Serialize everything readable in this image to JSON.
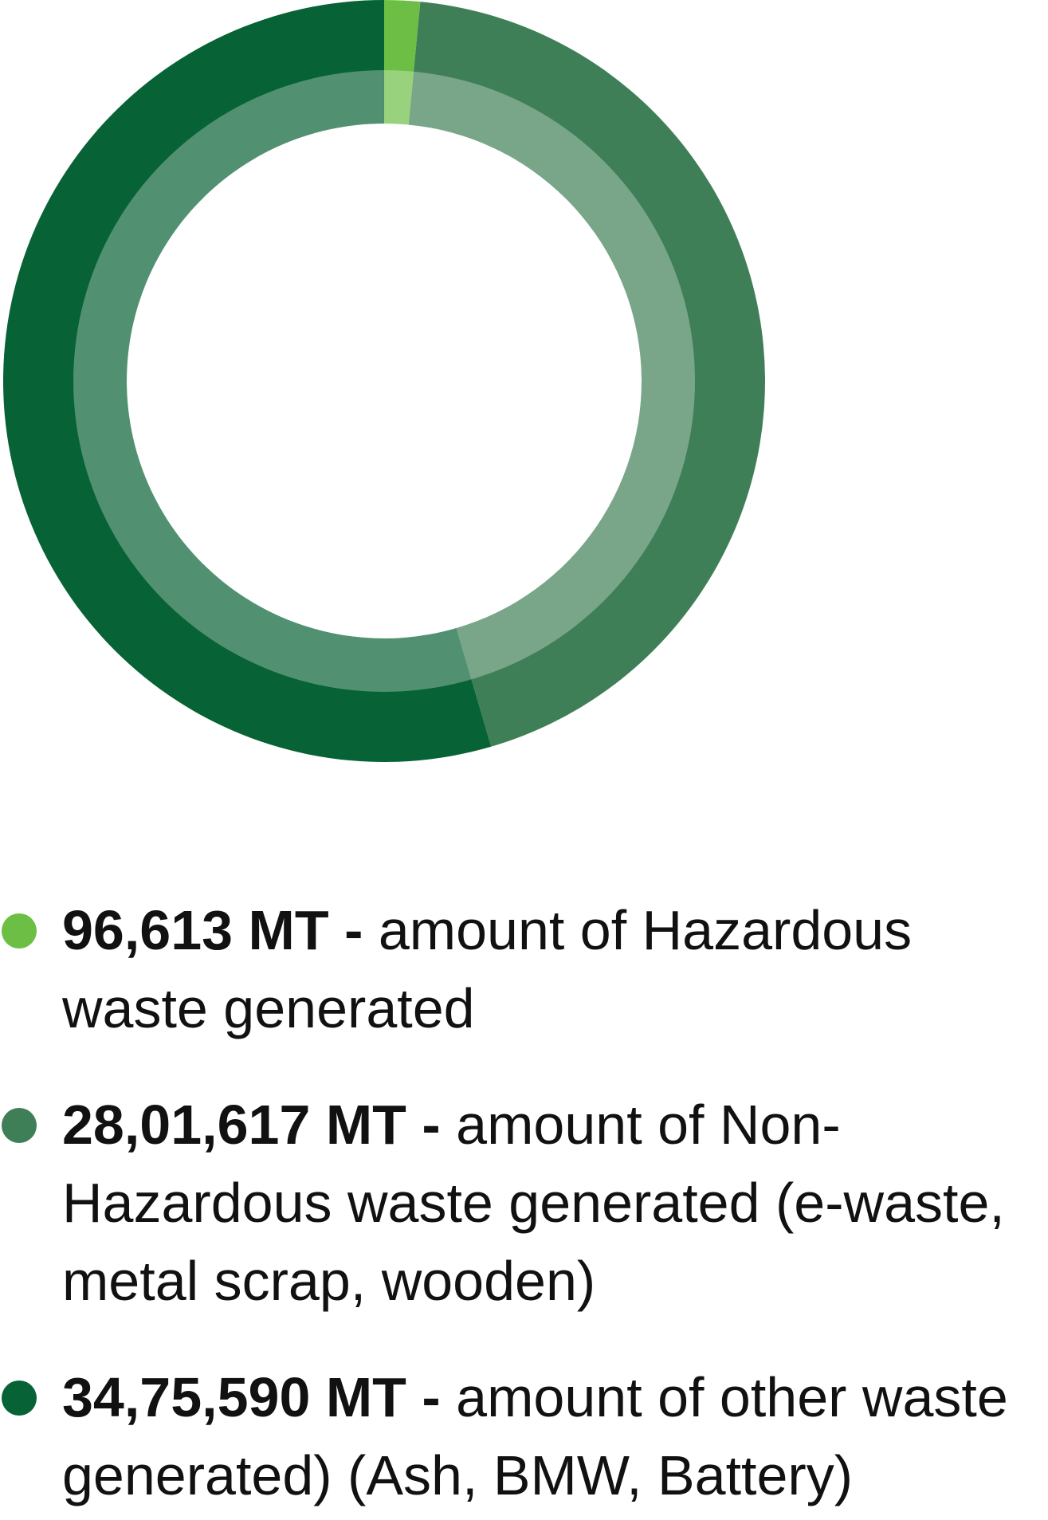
{
  "chart_data": {
    "type": "pie",
    "categories": [
      "amount of Hazardous waste generated",
      "amount of Non-Hazardous waste generated (e-waste, metal scrap, wooden)",
      "amount of other waste generated) (Ash, BMW, Battery)"
    ],
    "values": [
      96613,
      2801617,
      3475590
    ],
    "unit": "MT",
    "colors": [
      "#6cbf44",
      "#3f7f57",
      "#076235"
    ],
    "legend_position": "bottom"
  },
  "legend": [
    {
      "value": "96,613 MT",
      "separator": "-",
      "description": "amount of Hazardous waste generated",
      "color": "#6cbf44"
    },
    {
      "value": "28,01,617 MT",
      "separator": "-",
      "description": "amount of Non-Hazardous waste generated (e-waste, metal scrap, wooden)",
      "color": "#3f7f57"
    },
    {
      "value": "34,75,590 MT",
      "separator": "-",
      "description": "amount of other waste generated) (Ash, BMW, Battery)",
      "color": "#076235"
    }
  ]
}
